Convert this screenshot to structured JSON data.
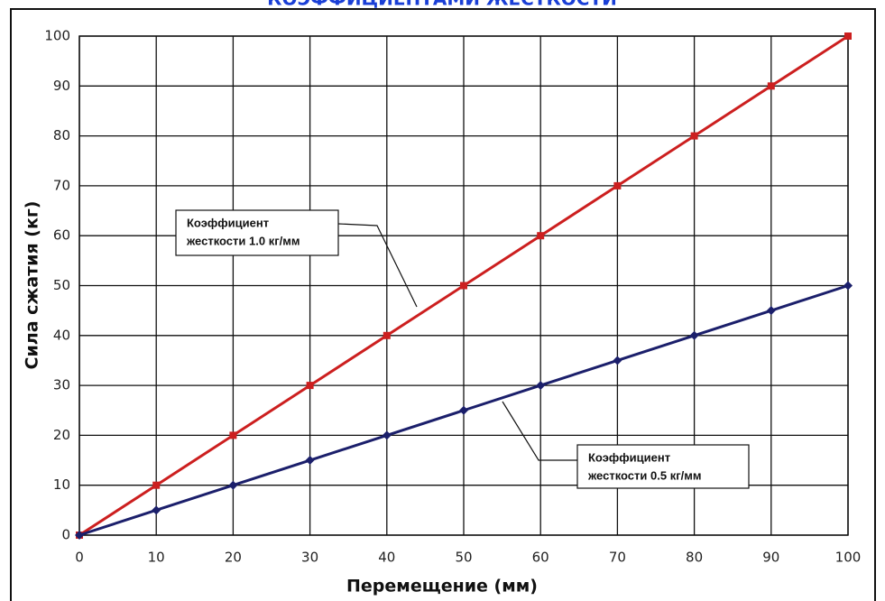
{
  "chart_data": {
    "type": "line",
    "title": "КОЭФФИЦИЕНТАМИ ЖЕСТКОСТИ",
    "x_label": "Перемещение (мм)",
    "y_label": "Сила сжатия (кг)",
    "x": [
      0,
      10,
      20,
      30,
      40,
      50,
      60,
      70,
      80,
      90,
      100
    ],
    "series": [
      {
        "color": "#cc1f1f",
        "marker": "square",
        "values": [
          0,
          10,
          20,
          30,
          40,
          50,
          60,
          70,
          80,
          90,
          100
        ]
      },
      {
        "color": "#1b1f6b",
        "marker": "diamond",
        "values": [
          0,
          5,
          10,
          15,
          20,
          25,
          30,
          35,
          40,
          45,
          50
        ]
      }
    ],
    "annotations": [
      {
        "lines": [
          "Коэффициент",
          "жесткости 1.0 кг/мм"
        ]
      },
      {
        "lines": [
          "Коэффициент",
          "жесткости 0.5 кг/мм"
        ]
      }
    ],
    "xlim": [
      0,
      100
    ],
    "xticks": [
      0,
      10,
      20,
      30,
      40,
      50,
      60,
      70,
      80,
      90,
      100
    ],
    "ylim": [
      0,
      100
    ],
    "yticks": [
      0,
      10,
      20,
      30,
      40,
      50,
      60,
      70,
      80,
      90,
      100
    ],
    "grid": true
  }
}
